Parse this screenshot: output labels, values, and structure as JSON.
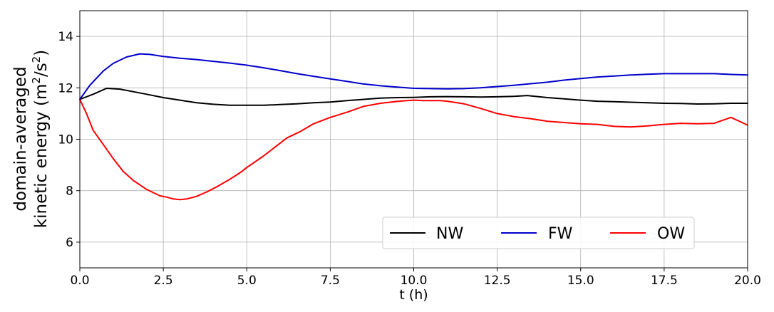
{
  "chart_data": {
    "type": "line",
    "title": "",
    "xlabel": "t (h)",
    "ylabel_line1": "domain-averaged",
    "ylabel_line2_prefix": "kinetic energy (m",
    "ylabel_sup1": "2",
    "ylabel_mid": "/s",
    "ylabel_sup2": "2",
    "ylabel_suffix": ")",
    "xlim": [
      0,
      20
    ],
    "ylim": [
      5,
      15
    ],
    "xticks": [
      0,
      2.5,
      5,
      7.5,
      10,
      12.5,
      15,
      17.5,
      20
    ],
    "xtick_labels": [
      "0.0",
      "2.5",
      "5.0",
      "7.5",
      "10.0",
      "12.5",
      "15.0",
      "17.5",
      "20.0"
    ],
    "yticks": [
      6,
      8,
      10,
      12,
      14
    ],
    "ytick_labels": [
      "6",
      "8",
      "10",
      "12",
      "14"
    ],
    "grid": true,
    "legend_position": "lower-right",
    "series": [
      {
        "name": "NW",
        "color": "#000000",
        "x": [
          0,
          0.4,
          0.8,
          1.2,
          1.6,
          2.0,
          2.5,
          3.0,
          3.5,
          4.0,
          4.5,
          5.0,
          5.5,
          6.0,
          6.5,
          7.0,
          7.5,
          8.0,
          8.5,
          9.0,
          9.5,
          10.0,
          10.5,
          11.0,
          11.5,
          12.0,
          12.5,
          13.0,
          13.4,
          14.0,
          14.5,
          15.0,
          15.5,
          16.0,
          16.5,
          17.0,
          17.5,
          18.0,
          18.5,
          19.0,
          19.5,
          20.0
        ],
        "y": [
          11.55,
          11.75,
          11.98,
          11.95,
          11.85,
          11.75,
          11.62,
          11.52,
          11.42,
          11.36,
          11.32,
          11.32,
          11.32,
          11.35,
          11.38,
          11.42,
          11.45,
          11.5,
          11.55,
          11.6,
          11.62,
          11.63,
          11.65,
          11.66,
          11.65,
          11.64,
          11.65,
          11.67,
          11.7,
          11.62,
          11.57,
          11.52,
          11.48,
          11.46,
          11.44,
          11.42,
          11.4,
          11.39,
          11.37,
          11.38,
          11.4,
          11.4
        ]
      },
      {
        "name": "FW",
        "color": "#0000cc",
        "x": [
          0,
          0.3,
          0.7,
          1.0,
          1.4,
          1.8,
          2.1,
          2.5,
          3.0,
          3.5,
          4.0,
          4.5,
          5.0,
          5.5,
          6.0,
          6.5,
          7.0,
          7.5,
          8.0,
          8.5,
          9.0,
          9.5,
          10.0,
          10.5,
          11.0,
          11.5,
          12.0,
          12.5,
          13.0,
          13.5,
          14.0,
          14.5,
          15.0,
          15.5,
          16.0,
          16.5,
          17.0,
          17.5,
          18.0,
          18.5,
          19.0,
          19.5,
          20.0
        ],
        "y": [
          11.55,
          12.1,
          12.65,
          12.95,
          13.2,
          13.32,
          13.3,
          13.22,
          13.15,
          13.1,
          13.03,
          12.96,
          12.88,
          12.78,
          12.67,
          12.55,
          12.45,
          12.35,
          12.25,
          12.15,
          12.08,
          12.03,
          11.98,
          11.97,
          11.96,
          11.97,
          12.0,
          12.05,
          12.1,
          12.16,
          12.22,
          12.3,
          12.36,
          12.42,
          12.46,
          12.5,
          12.53,
          12.55,
          12.55,
          12.55,
          12.55,
          12.52,
          12.5
        ]
      },
      {
        "name": "OW",
        "color": "#ff0000",
        "x": [
          0,
          0.2,
          0.4,
          0.7,
          1.0,
          1.3,
          1.6,
          2.0,
          2.4,
          2.6,
          2.8,
          3.0,
          3.2,
          3.5,
          3.8,
          4.1,
          4.5,
          4.8,
          5.0,
          5.5,
          6.0,
          6.2,
          6.6,
          7.0,
          7.5,
          8.0,
          8.5,
          9.0,
          9.5,
          9.8,
          10.0,
          10.3,
          10.5,
          10.8,
          11.0,
          11.5,
          12.0,
          12.5,
          13.0,
          13.5,
          14.0,
          14.5,
          15.0,
          15.5,
          16.0,
          16.5,
          17.0,
          17.5,
          18.0,
          18.5,
          19.0,
          19.5,
          20.0
        ],
        "y": [
          11.55,
          11.0,
          10.35,
          9.8,
          9.25,
          8.75,
          8.4,
          8.05,
          7.8,
          7.75,
          7.68,
          7.65,
          7.68,
          7.78,
          7.95,
          8.15,
          8.45,
          8.7,
          8.9,
          9.35,
          9.85,
          10.05,
          10.3,
          10.6,
          10.85,
          11.05,
          11.28,
          11.4,
          11.47,
          11.5,
          11.52,
          11.5,
          11.5,
          11.5,
          11.48,
          11.38,
          11.2,
          11.0,
          10.88,
          10.8,
          10.7,
          10.65,
          10.6,
          10.58,
          10.5,
          10.48,
          10.52,
          10.58,
          10.62,
          10.6,
          10.62,
          10.85,
          10.55
        ]
      }
    ]
  }
}
